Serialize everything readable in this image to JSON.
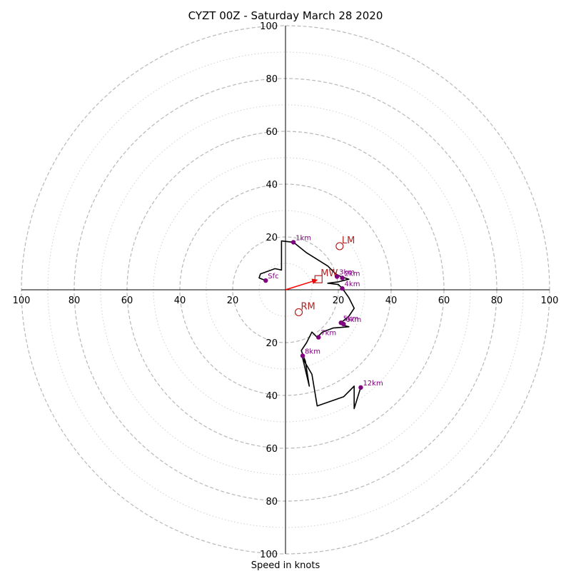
{
  "chart_data": {
    "type": "hodograph",
    "title": "CYZT 00Z - Saturday March 28 2020",
    "xlabel": "Speed in knots",
    "ring_max": 100,
    "ring_step_major": 20,
    "ring_step_minor": 10,
    "tick_values": [
      20,
      40,
      60,
      80,
      100
    ],
    "colors": {
      "trace": "#000000",
      "height_point": "#800080",
      "motion": "#b22222",
      "mean_wind_arrow": "#ff0000",
      "ring_major": "#b8b8b8",
      "ring_minor": "#d0d0d0"
    },
    "trace": [
      [
        -7.5,
        3.5
      ],
      [
        -10,
        4.5
      ],
      [
        -9.5,
        6
      ],
      [
        -4,
        8
      ],
      [
        -1.5,
        7.5
      ],
      [
        -1.5,
        10
      ],
      [
        -1.5,
        14
      ],
      [
        -1.5,
        18.5
      ],
      [
        3,
        18
      ],
      [
        8,
        14
      ],
      [
        16,
        9
      ],
      [
        19,
        6
      ],
      [
        21,
        5
      ],
      [
        24,
        4
      ],
      [
        20,
        3
      ],
      [
        16,
        2.5
      ],
      [
        20,
        2
      ],
      [
        21.5,
        0.5
      ],
      [
        24,
        -3
      ],
      [
        26,
        -7
      ],
      [
        24,
        -10
      ],
      [
        21,
        -12.5
      ],
      [
        22,
        -13.5
      ],
      [
        24,
        -14
      ],
      [
        18,
        -14.5
      ],
      [
        14,
        -16
      ],
      [
        12,
        -18
      ],
      [
        10,
        -16
      ],
      [
        8,
        -20
      ],
      [
        6,
        -23
      ],
      [
        6.5,
        -24.5
      ],
      [
        7.5,
        -27
      ],
      [
        9,
        -36.5
      ],
      [
        7,
        -28
      ],
      [
        6.5,
        -26
      ],
      [
        10,
        -32
      ],
      [
        12,
        -44
      ],
      [
        22,
        -40.5
      ],
      [
        26,
        -36.5
      ],
      [
        26,
        -45
      ],
      [
        28,
        -38.5
      ],
      [
        28.5,
        -37
      ]
    ],
    "height_points": [
      {
        "label": "Sfc",
        "u": -7.5,
        "v": 3.5
      },
      {
        "label": "1km",
        "u": 3,
        "v": 18
      },
      {
        "label": "2km",
        "u": 21.5,
        "v": 4.5
      },
      {
        "label": "3km",
        "u": 19.5,
        "v": 5
      },
      {
        "label": "4km",
        "u": 21.5,
        "v": 0.5
      },
      {
        "label": "5km",
        "u": 21,
        "v": -12.5
      },
      {
        "label": "6km",
        "u": 22,
        "v": -13
      },
      {
        "label": "7km",
        "u": 12.5,
        "v": -18
      },
      {
        "label": "8km",
        "u": 6.5,
        "v": -25
      },
      {
        "label": "12km",
        "u": 28.5,
        "v": -37
      }
    ],
    "motions": [
      {
        "label": "LM",
        "u": 20.5,
        "v": 16.5
      },
      {
        "label": "RM",
        "u": 5,
        "v": -8.5
      },
      {
        "label": "MW",
        "u": 12.5,
        "v": 4
      }
    ]
  }
}
